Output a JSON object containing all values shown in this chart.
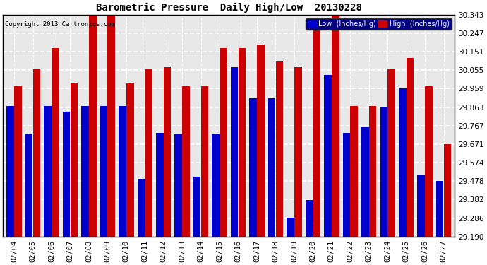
{
  "title": "Barometric Pressure  Daily High/Low  20130228",
  "copyright": "Copyright 2013 Cartronics.com",
  "legend_low": "Low  (Inches/Hg)",
  "legend_high": "High  (Inches/Hg)",
  "low_color": "#0000cc",
  "high_color": "#cc0000",
  "background_color": "#ffffff",
  "ylim": [
    29.19,
    30.343
  ],
  "yticks": [
    29.19,
    29.286,
    29.382,
    29.478,
    29.574,
    29.671,
    29.767,
    29.863,
    29.959,
    30.055,
    30.151,
    30.247,
    30.343
  ],
  "dates": [
    "02/04",
    "02/05",
    "02/06",
    "02/07",
    "02/08",
    "02/09",
    "02/10",
    "02/11",
    "02/12",
    "02/13",
    "02/14",
    "02/15",
    "02/16",
    "02/17",
    "02/18",
    "02/19",
    "02/20",
    "02/21",
    "02/22",
    "02/23",
    "02/24",
    "02/25",
    "02/26",
    "02/27"
  ],
  "low_values": [
    29.87,
    29.72,
    29.87,
    29.84,
    29.87,
    29.87,
    29.87,
    29.49,
    29.73,
    29.72,
    29.5,
    29.72,
    30.07,
    29.91,
    29.91,
    29.29,
    29.38,
    30.03,
    29.73,
    29.76,
    29.86,
    29.96,
    29.51,
    29.48
  ],
  "high_values": [
    29.97,
    30.06,
    30.17,
    29.99,
    30.34,
    30.34,
    29.99,
    30.06,
    30.07,
    29.97,
    29.97,
    30.17,
    30.17,
    30.19,
    30.1,
    30.07,
    30.29,
    30.34,
    29.87,
    29.87,
    30.06,
    30.12,
    29.97,
    29.67
  ]
}
